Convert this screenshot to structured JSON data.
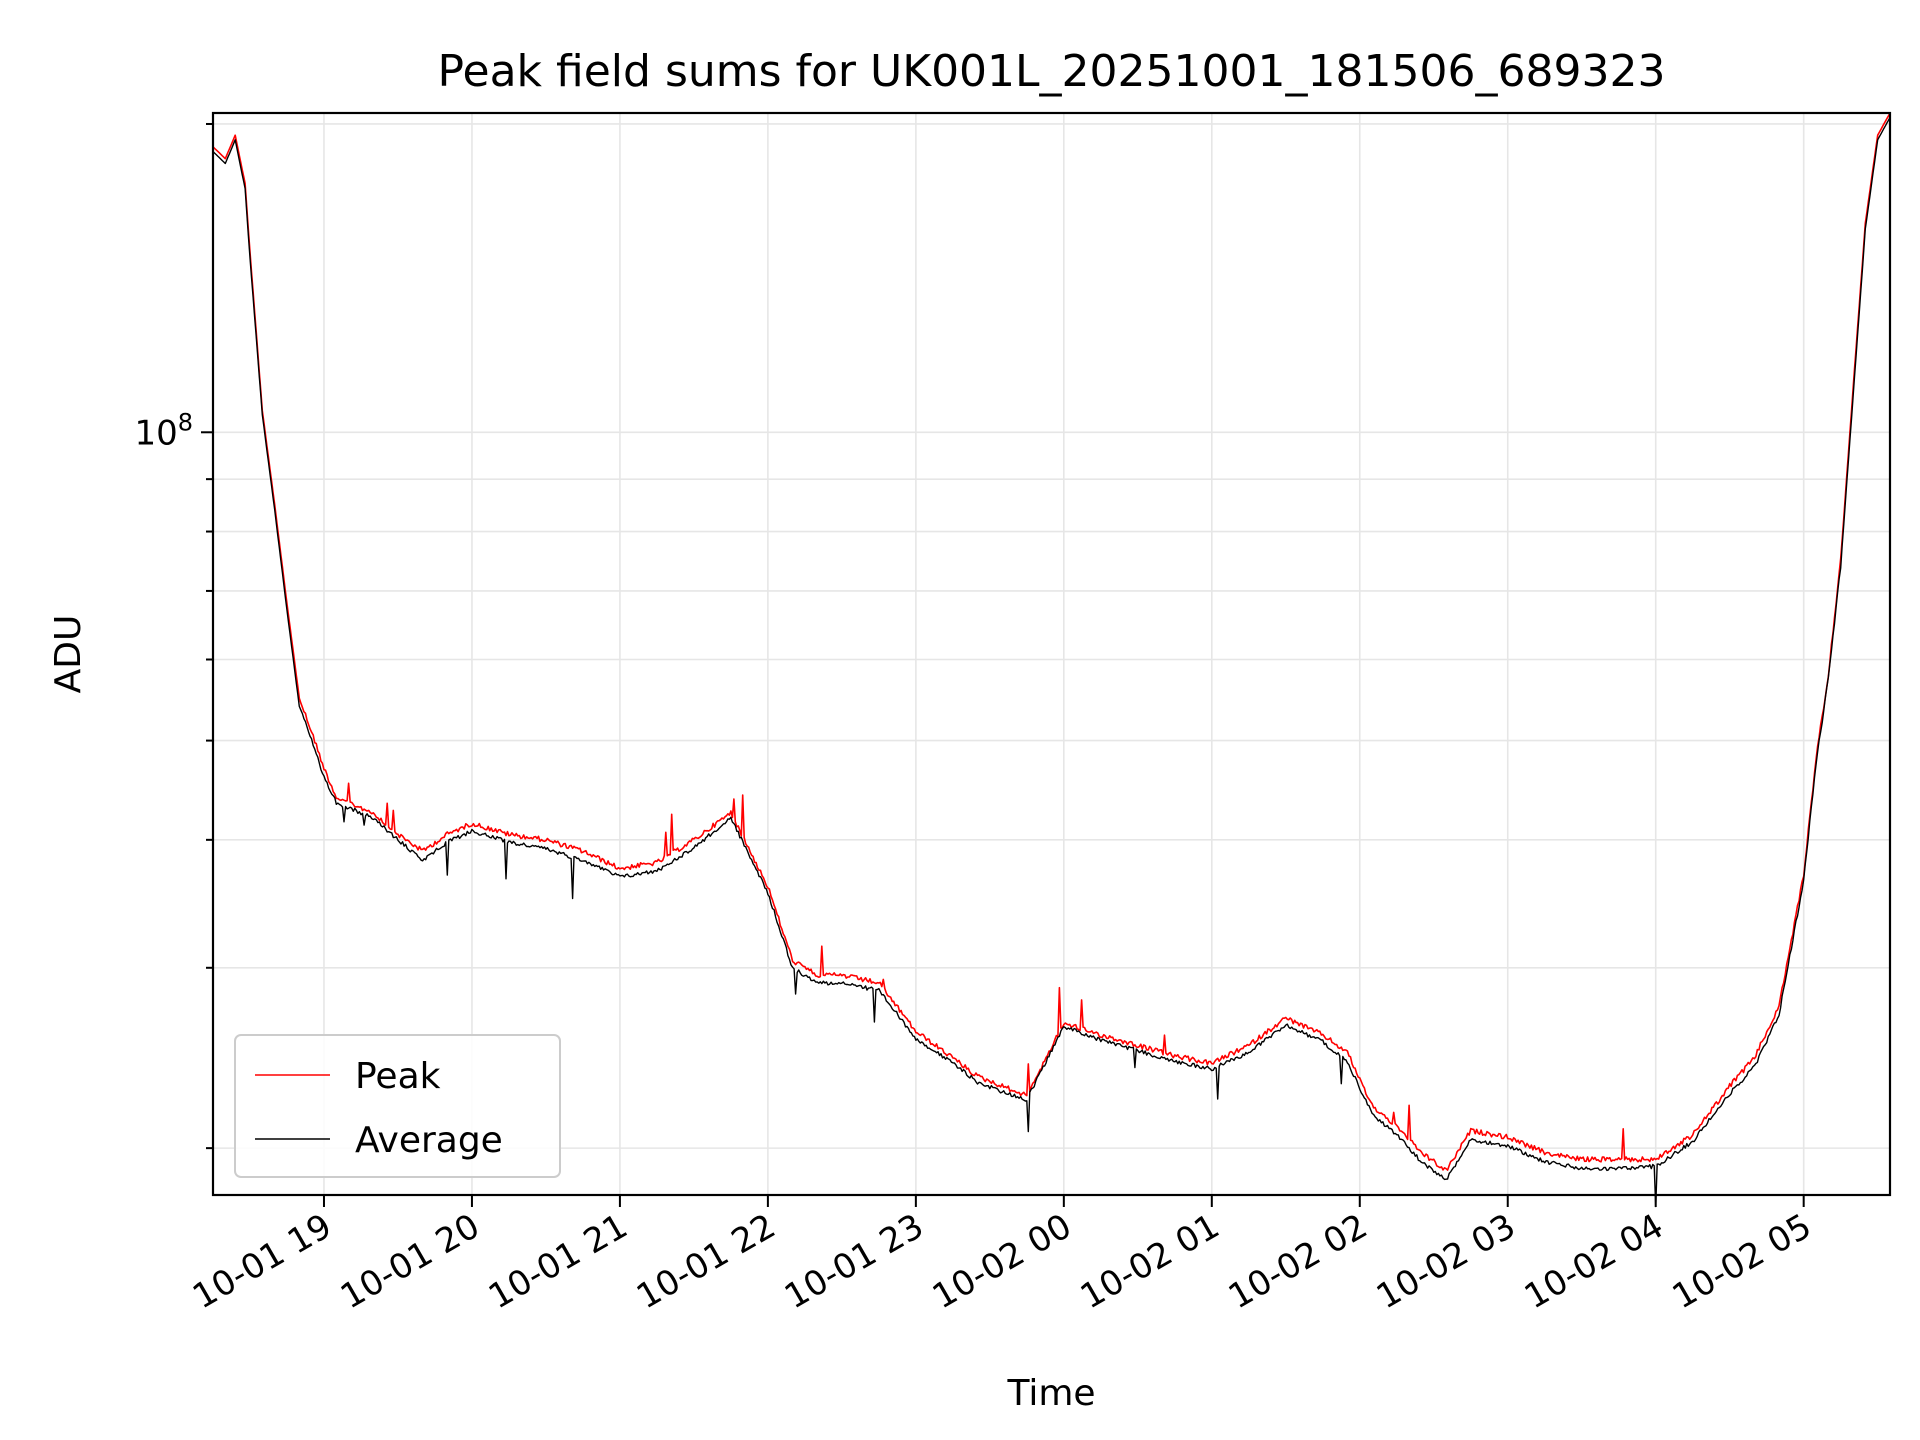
{
  "chart_data": {
    "type": "line",
    "title": "Peak field sums for UK001L_20251001_181506_689323",
    "xlabel": "Time",
    "ylabel": "ADU",
    "x_axis": {
      "type": "datetime",
      "range": [
        "2025-10-01 18:15",
        "2025-10-02 05:35"
      ],
      "tick_times": [
        "2025-10-01 19:00",
        "2025-10-01 20:00",
        "2025-10-01 21:00",
        "2025-10-01 22:00",
        "2025-10-01 23:00",
        "2025-10-02 00:00",
        "2025-10-02 01:00",
        "2025-10-02 02:00",
        "2025-10-02 03:00",
        "2025-10-02 04:00",
        "2025-10-02 05:00"
      ],
      "tick_labels": [
        "10-01 19",
        "10-01 20",
        "10-01 21",
        "10-01 22",
        "10-01 23",
        "10-02 00",
        "10-02 01",
        "10-02 02",
        "10-02 03",
        "10-02 04",
        "10-02 05"
      ]
    },
    "y_axis": {
      "scale": "log",
      "range": [
        18000000,
        205000000
      ],
      "major_ticks": [
        {
          "value": 100000000,
          "base": "10",
          "exp": "8"
        }
      ],
      "minor_ticks": [
        20000000,
        30000000,
        40000000,
        50000000,
        60000000,
        70000000,
        80000000,
        90000000,
        200000000
      ]
    },
    "grid": true,
    "legend": {
      "placement": "lower-left"
    },
    "series": [
      {
        "name": "Peak",
        "color": "#ff0000",
        "x": [
          "2025-10-01 18:15",
          "2025-10-01 18:20",
          "2025-10-01 18:24",
          "2025-10-01 18:28",
          "2025-10-01 18:30",
          "2025-10-01 18:35",
          "2025-10-01 18:40",
          "2025-10-01 18:45",
          "2025-10-01 18:50",
          "2025-10-01 18:55",
          "2025-10-01 19:00",
          "2025-10-01 19:05",
          "2025-10-01 19:10",
          "2025-10-01 19:20",
          "2025-10-01 19:30",
          "2025-10-01 19:40",
          "2025-10-01 19:50",
          "2025-10-01 20:00",
          "2025-10-01 20:15",
          "2025-10-01 20:30",
          "2025-10-01 20:45",
          "2025-10-01 21:00",
          "2025-10-01 21:15",
          "2025-10-01 21:30",
          "2025-10-01 21:45",
          "2025-10-01 22:00",
          "2025-10-01 22:10",
          "2025-10-01 22:20",
          "2025-10-01 22:30",
          "2025-10-01 22:45",
          "2025-10-01 23:00",
          "2025-10-01 23:15",
          "2025-10-01 23:25",
          "2025-10-01 23:35",
          "2025-10-01 23:45",
          "2025-10-02 00:00",
          "2025-10-02 00:15",
          "2025-10-02 00:30",
          "2025-10-02 00:45",
          "2025-10-02 01:00",
          "2025-10-02 01:15",
          "2025-10-02 01:30",
          "2025-10-02 01:45",
          "2025-10-02 01:55",
          "2025-10-02 02:05",
          "2025-10-02 02:15",
          "2025-10-02 02:25",
          "2025-10-02 02:35",
          "2025-10-02 02:45",
          "2025-10-02 03:00",
          "2025-10-02 03:15",
          "2025-10-02 03:30",
          "2025-10-02 03:45",
          "2025-10-02 04:00",
          "2025-10-02 04:15",
          "2025-10-02 04:30",
          "2025-10-02 04:40",
          "2025-10-02 04:50",
          "2025-10-02 05:00",
          "2025-10-02 05:05",
          "2025-10-02 05:10",
          "2025-10-02 05:15",
          "2025-10-02 05:20",
          "2025-10-02 05:25",
          "2025-10-02 05:30",
          "2025-10-02 05:35"
        ],
        "y": [
          190000000,
          185000000,
          195000000,
          175000000,
          150000000,
          105000000,
          85000000,
          68000000,
          55000000,
          51000000,
          47000000,
          44000000,
          43500000,
          42500000,
          40500000,
          39000000,
          40500000,
          41500000,
          40500000,
          40000000,
          39000000,
          37500000,
          38000000,
          40000000,
          42500000,
          36000000,
          30500000,
          29500000,
          29500000,
          29000000,
          26000000,
          24500000,
          23500000,
          23000000,
          22500000,
          26500000,
          25800000,
          25200000,
          24600000,
          24200000,
          25200000,
          26800000,
          25800000,
          24800000,
          22000000,
          21000000,
          19800000,
          19000000,
          20800000,
          20500000,
          19800000,
          19500000,
          19500000,
          19500000,
          20600000,
          23000000,
          24500000,
          27500000,
          37000000,
          48000000,
          58000000,
          75000000,
          110000000,
          160000000,
          195000000,
          205000000
        ]
      },
      {
        "name": "Average",
        "color": "#000000",
        "x": [
          "2025-10-01 18:15",
          "2025-10-01 18:20",
          "2025-10-01 18:24",
          "2025-10-01 18:28",
          "2025-10-01 18:30",
          "2025-10-01 18:35",
          "2025-10-01 18:40",
          "2025-10-01 18:45",
          "2025-10-01 18:50",
          "2025-10-01 18:55",
          "2025-10-01 19:00",
          "2025-10-01 19:05",
          "2025-10-01 19:10",
          "2025-10-01 19:20",
          "2025-10-01 19:30",
          "2025-10-01 19:40",
          "2025-10-01 19:50",
          "2025-10-01 20:00",
          "2025-10-01 20:15",
          "2025-10-01 20:30",
          "2025-10-01 20:45",
          "2025-10-01 21:00",
          "2025-10-01 21:15",
          "2025-10-01 21:30",
          "2025-10-01 21:45",
          "2025-10-01 22:00",
          "2025-10-01 22:10",
          "2025-10-01 22:20",
          "2025-10-01 22:30",
          "2025-10-01 22:45",
          "2025-10-01 23:00",
          "2025-10-01 23:15",
          "2025-10-01 23:25",
          "2025-10-01 23:35",
          "2025-10-01 23:45",
          "2025-10-02 00:00",
          "2025-10-02 00:15",
          "2025-10-02 00:30",
          "2025-10-02 00:45",
          "2025-10-02 01:00",
          "2025-10-02 01:15",
          "2025-10-02 01:30",
          "2025-10-02 01:45",
          "2025-10-02 01:55",
          "2025-10-02 02:05",
          "2025-10-02 02:15",
          "2025-10-02 02:25",
          "2025-10-02 02:35",
          "2025-10-02 02:45",
          "2025-10-02 03:00",
          "2025-10-02 03:15",
          "2025-10-02 03:30",
          "2025-10-02 03:45",
          "2025-10-02 04:00",
          "2025-10-02 04:15",
          "2025-10-02 04:30",
          "2025-10-02 04:40",
          "2025-10-02 04:50",
          "2025-10-02 05:00",
          "2025-10-02 05:05",
          "2025-10-02 05:10",
          "2025-10-02 05:15",
          "2025-10-02 05:20",
          "2025-10-02 05:25",
          "2025-10-02 05:30",
          "2025-10-02 05:35"
        ],
        "y": [
          188000000,
          183000000,
          193000000,
          173000000,
          148000000,
          104000000,
          84000000,
          67000000,
          54000000,
          50000000,
          46000000,
          43500000,
          43000000,
          42000000,
          40000000,
          38200000,
          39800000,
          40800000,
          39800000,
          39200000,
          38200000,
          36800000,
          37300000,
          39300000,
          42000000,
          35500000,
          30000000,
          29000000,
          29000000,
          28500000,
          25600000,
          24200000,
          23200000,
          22700000,
          22300000,
          26300000,
          25500000,
          24900000,
          24300000,
          23900000,
          24800000,
          26400000,
          25400000,
          24300000,
          21600000,
          20600000,
          19400000,
          18600000,
          20400000,
          20100000,
          19400000,
          19100000,
          19100000,
          19200000,
          20300000,
          22600000,
          24000000,
          27000000,
          36500000,
          47500000,
          57500000,
          74000000,
          108000000,
          158000000,
          193000000,
          203000000
        ]
      }
    ]
  }
}
